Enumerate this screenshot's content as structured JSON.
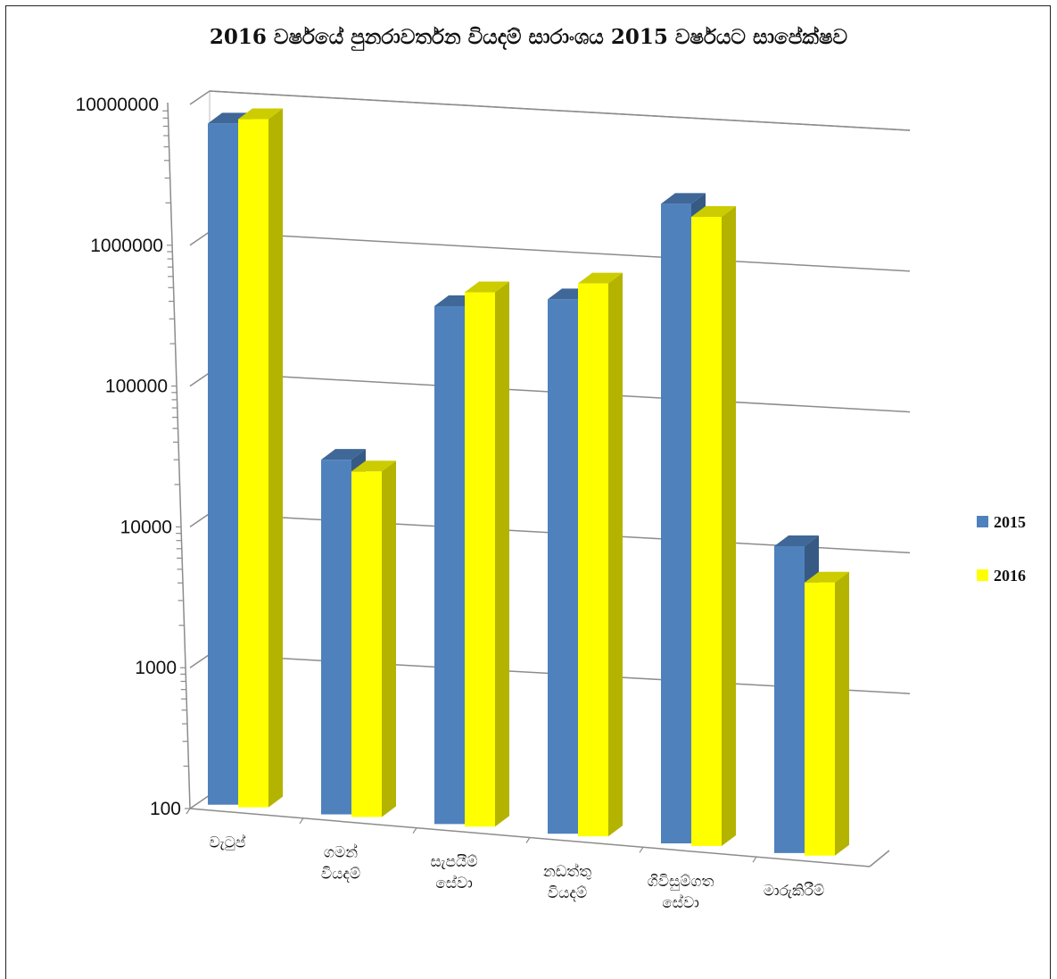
{
  "chart_data": {
    "type": "bar",
    "title": "2016 වර්ෂයේ පුනරාවර්තන වියදම් සාරාංශය 2015 වර්ෂයට සාපේක්ෂව",
    "scale": "log",
    "ylim": [
      100,
      10000000
    ],
    "yticks": [
      "10000000",
      "1000000",
      "100000",
      "10000",
      "1000",
      "100"
    ],
    "categories": [
      [
        "වැටුප්"
      ],
      [
        "ගමන්",
        "වියදම්"
      ],
      [
        "සැපයීම්",
        "සේවා"
      ],
      [
        "නඩත්තු",
        "වියදම්"
      ],
      [
        "ගිවිසුම්ගත",
        "සේවා"
      ],
      [
        "මාරුකිරීම්"
      ]
    ],
    "series": [
      {
        "name": "2015",
        "color": "#4F81BD",
        "values": [
          7500000,
          36000,
          520000,
          680000,
          3800000,
          16500
        ]
      },
      {
        "name": "2016",
        "color": "#FFFF00",
        "values": [
          8400000,
          31000,
          680000,
          920000,
          3200000,
          9500
        ]
      }
    ],
    "legend_position": "right",
    "grid": true
  }
}
